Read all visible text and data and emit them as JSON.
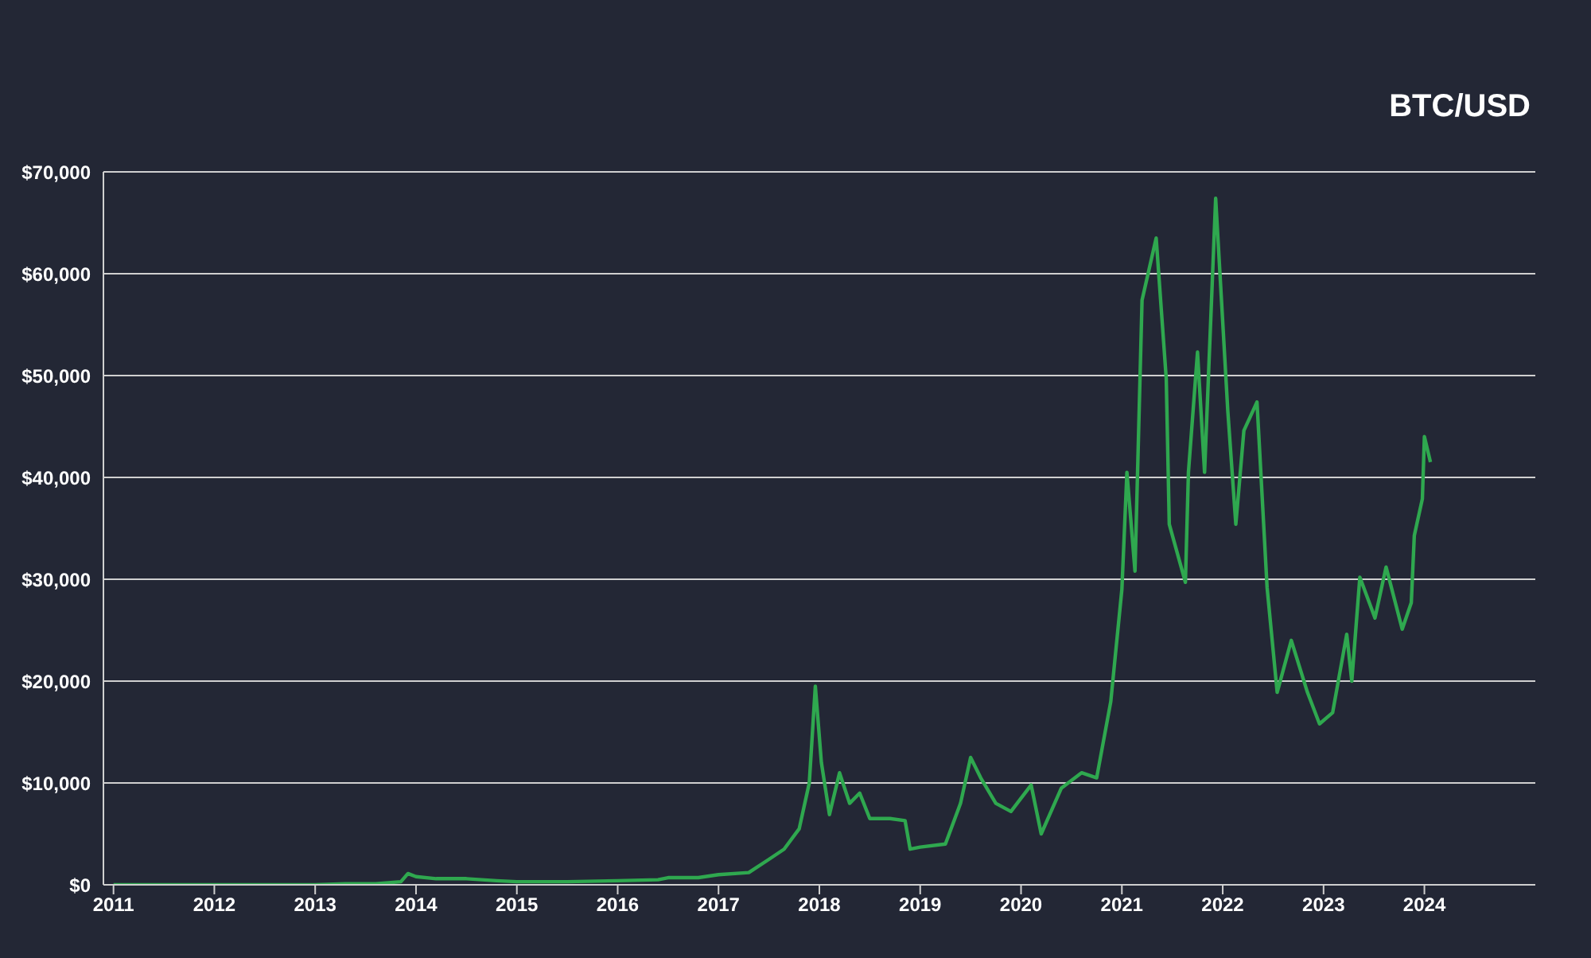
{
  "chart_data": {
    "type": "line",
    "title": "BTC/USD",
    "x": [
      2011.0,
      2011.5,
      2012.0,
      2012.5,
      2013.0,
      2013.3,
      2013.6,
      2013.85,
      2013.92,
      2014.0,
      2014.2,
      2014.5,
      2014.8,
      2015.0,
      2015.5,
      2016.0,
      2016.4,
      2016.5,
      2016.8,
      2017.0,
      2017.3,
      2017.5,
      2017.65,
      2017.8,
      2017.9,
      2017.96,
      2018.02,
      2018.1,
      2018.2,
      2018.3,
      2018.4,
      2018.5,
      2018.7,
      2018.85,
      2018.9,
      2019.0,
      2019.25,
      2019.4,
      2019.5,
      2019.6,
      2019.75,
      2019.9,
      2020.1,
      2020.2,
      2020.4,
      2020.6,
      2020.75,
      2020.89,
      2021.0,
      2021.05,
      2021.13,
      2021.2,
      2021.34,
      2021.44,
      2021.47,
      2021.63,
      2021.66,
      2021.75,
      2021.82,
      2021.93,
      2022.05,
      2022.13,
      2022.21,
      2022.34,
      2022.44,
      2022.54,
      2022.68,
      2022.84,
      2022.96,
      2023.09,
      2023.23,
      2023.28,
      2023.36,
      2023.51,
      2023.62,
      2023.78,
      2023.87,
      2023.9,
      2023.98,
      2024.0,
      2024.06
    ],
    "series": [
      {
        "color": "#2fa84f",
        "values": [
          0,
          0,
          0,
          0,
          0,
          100,
          100,
          300,
          1100,
          800,
          600,
          600,
          400,
          300,
          300,
          400,
          500,
          700,
          700,
          1000,
          1200,
          2500,
          3500,
          5500,
          10000,
          19500,
          12000,
          6900,
          11000,
          8000,
          9000,
          6500,
          6500,
          6300,
          3500,
          3700,
          4000,
          8000,
          12500,
          10500,
          8000,
          7200,
          9800,
          5000,
          9500,
          11000,
          10500,
          18000,
          29000,
          40500,
          30800,
          57400,
          63500,
          49700,
          35400,
          29700,
          40500,
          52300,
          40500,
          67400,
          46600,
          35400,
          44600,
          47400,
          29200,
          18900,
          24000,
          18900,
          15800,
          16900,
          24600,
          20000,
          30200,
          26200,
          31200,
          25100,
          27700,
          34300,
          37900,
          44000,
          41500
        ]
      }
    ],
    "xlim": [
      2010.9,
      2025.1
    ],
    "xticks": [
      2011,
      2012,
      2013,
      2014,
      2015,
      2016,
      2017,
      2018,
      2019,
      2020,
      2021,
      2022,
      2023,
      2024
    ],
    "ylim": [
      0,
      70000
    ],
    "yticks": [
      {
        "value": 0,
        "label": "$0"
      },
      {
        "value": 10000,
        "label": "$10,000"
      },
      {
        "value": 20000,
        "label": "$20,000"
      },
      {
        "value": 30000,
        "label": "$30,000"
      },
      {
        "value": 40000,
        "label": "$40,000"
      },
      {
        "value": 50000,
        "label": "$50,000"
      },
      {
        "value": 60000,
        "label": "$60,000"
      },
      {
        "value": 70000,
        "label": "$70,000"
      }
    ],
    "grid": "y"
  }
}
